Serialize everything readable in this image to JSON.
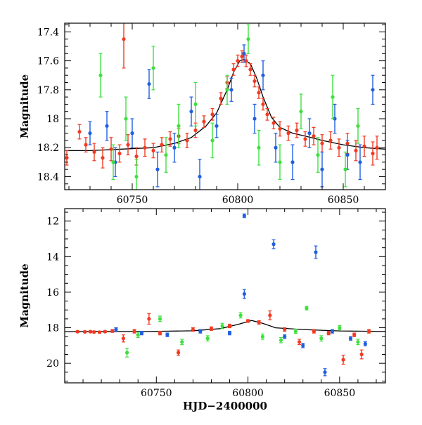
{
  "colors": {
    "blue": "#1f5fe0",
    "green": "#3ee03e",
    "red": "#f23a22",
    "model": "#000000"
  },
  "chart_data": [
    {
      "type": "scatter",
      "panel": "top",
      "xlabel": "",
      "ylabel": "Magnitude",
      "xlim": [
        60718,
        60870
      ],
      "ylim": [
        18.49,
        17.34
      ],
      "y_inverted": true,
      "x_ticks": [
        60750,
        60800,
        60850
      ],
      "y_ticks": [
        17.4,
        17.6,
        17.8,
        18,
        18.2,
        18.4
      ],
      "x_tick_labels": [
        "60750",
        "60800",
        "60850"
      ],
      "y_tick_labels": [
        "17.4",
        "17.6",
        "17.8",
        "18",
        "18.2",
        "18.4"
      ],
      "model_curve": {
        "x": [
          60718,
          60730,
          60745,
          60760,
          60770,
          60778,
          60785,
          60790,
          60795,
          60798,
          60801,
          60803,
          60806,
          60809,
          60812,
          60816,
          60820,
          60826,
          60832,
          60840,
          60850,
          60860,
          60870
        ],
        "y": [
          18.22,
          18.22,
          18.21,
          18.2,
          18.17,
          18.13,
          18.05,
          17.96,
          17.8,
          17.68,
          17.6,
          17.59,
          17.62,
          17.72,
          17.85,
          17.99,
          18.06,
          18.1,
          18.12,
          18.15,
          18.18,
          18.2,
          18.21
        ]
      },
      "series": [
        {
          "color_key": "red",
          "points": [
            {
              "x": 60719,
              "y": 18.27,
              "err": 0.05
            },
            {
              "x": 60725,
              "y": 18.09,
              "err": 0.05
            },
            {
              "x": 60728,
              "y": 18.18,
              "err": 0.05
            },
            {
              "x": 60732,
              "y": 18.23,
              "err": 0.06
            },
            {
              "x": 60736,
              "y": 18.27,
              "err": 0.07
            },
            {
              "x": 60740,
              "y": 18.21,
              "err": 0.08
            },
            {
              "x": 60744,
              "y": 18.24,
              "err": 0.06
            },
            {
              "x": 60746,
              "y": 17.45,
              "err": 0.2
            },
            {
              "x": 60748,
              "y": 18.18,
              "err": 0.07
            },
            {
              "x": 60752,
              "y": 18.26,
              "err": 0.06
            },
            {
              "x": 60756,
              "y": 18.2,
              "err": 0.06
            },
            {
              "x": 60760,
              "y": 18.22,
              "err": 0.05
            },
            {
              "x": 60764,
              "y": 18.18,
              "err": 0.05
            },
            {
              "x": 60768,
              "y": 18.14,
              "err": 0.05
            },
            {
              "x": 60772,
              "y": 18.12,
              "err": 0.05
            },
            {
              "x": 60776,
              "y": 18.15,
              "err": 0.05
            },
            {
              "x": 60780,
              "y": 18.08,
              "err": 0.05
            },
            {
              "x": 60784,
              "y": 18.02,
              "err": 0.04
            },
            {
              "x": 60788,
              "y": 17.97,
              "err": 0.04
            },
            {
              "x": 60792,
              "y": 17.86,
              "err": 0.04
            },
            {
              "x": 60795,
              "y": 17.75,
              "err": 0.04
            },
            {
              "x": 60798,
              "y": 17.66,
              "err": 0.04
            },
            {
              "x": 60800,
              "y": 17.6,
              "err": 0.04
            },
            {
              "x": 60802,
              "y": 17.57,
              "err": 0.04
            },
            {
              "x": 60804,
              "y": 17.6,
              "err": 0.04
            },
            {
              "x": 60806,
              "y": 17.66,
              "err": 0.04
            },
            {
              "x": 60808,
              "y": 17.74,
              "err": 0.04
            },
            {
              "x": 60810,
              "y": 17.82,
              "err": 0.04
            },
            {
              "x": 60812,
              "y": 17.9,
              "err": 0.04
            },
            {
              "x": 60814,
              "y": 17.97,
              "err": 0.04
            },
            {
              "x": 60817,
              "y": 18.03,
              "err": 0.04
            },
            {
              "x": 60820,
              "y": 18.07,
              "err": 0.05
            },
            {
              "x": 60824,
              "y": 18.1,
              "err": 0.05
            },
            {
              "x": 60828,
              "y": 18.08,
              "err": 0.05
            },
            {
              "x": 60832,
              "y": 18.14,
              "err": 0.05
            },
            {
              "x": 60836,
              "y": 18.12,
              "err": 0.06
            },
            {
              "x": 60840,
              "y": 18.17,
              "err": 0.06
            },
            {
              "x": 60844,
              "y": 18.15,
              "err": 0.06
            },
            {
              "x": 60848,
              "y": 18.2,
              "err": 0.06
            },
            {
              "x": 60852,
              "y": 18.17,
              "err": 0.07
            },
            {
              "x": 60856,
              "y": 18.22,
              "err": 0.07
            },
            {
              "x": 60860,
              "y": 18.19,
              "err": 0.07
            },
            {
              "x": 60864,
              "y": 18.24,
              "err": 0.08
            },
            {
              "x": 60866,
              "y": 18.2,
              "err": 0.08
            }
          ]
        },
        {
          "color_key": "blue",
          "points": [
            {
              "x": 60730,
              "y": 18.1,
              "err": 0.08
            },
            {
              "x": 60738,
              "y": 18.05,
              "err": 0.1
            },
            {
              "x": 60742,
              "y": 18.3,
              "err": 0.1
            },
            {
              "x": 60750,
              "y": 18.1,
              "err": 0.1
            },
            {
              "x": 60758,
              "y": 17.76,
              "err": 0.1
            },
            {
              "x": 60762,
              "y": 18.35,
              "err": 0.12
            },
            {
              "x": 60770,
              "y": 18.2,
              "err": 0.1
            },
            {
              "x": 60778,
              "y": 17.95,
              "err": 0.1
            },
            {
              "x": 60782,
              "y": 18.4,
              "err": 0.12
            },
            {
              "x": 60790,
              "y": 18.05,
              "err": 0.08
            },
            {
              "x": 60797,
              "y": 17.8,
              "err": 0.08
            },
            {
              "x": 60803,
              "y": 17.55,
              "err": 0.06
            },
            {
              "x": 60808,
              "y": 18.0,
              "err": 0.1
            },
            {
              "x": 60812,
              "y": 17.7,
              "err": 0.1
            },
            {
              "x": 60818,
              "y": 18.2,
              "err": 0.1
            },
            {
              "x": 60826,
              "y": 18.3,
              "err": 0.12
            },
            {
              "x": 60834,
              "y": 18.1,
              "err": 0.1
            },
            {
              "x": 60840,
              "y": 18.35,
              "err": 0.12
            },
            {
              "x": 60846,
              "y": 18.0,
              "err": 0.1
            },
            {
              "x": 60852,
              "y": 18.25,
              "err": 0.1
            },
            {
              "x": 60858,
              "y": 18.3,
              "err": 0.12
            },
            {
              "x": 60864,
              "y": 17.8,
              "err": 0.1
            }
          ]
        },
        {
          "color_key": "green",
          "points": [
            {
              "x": 60735,
              "y": 17.7,
              "err": 0.15
            },
            {
              "x": 60741,
              "y": 18.3,
              "err": 0.12
            },
            {
              "x": 60747,
              "y": 18.0,
              "err": 0.15
            },
            {
              "x": 60752,
              "y": 18.4,
              "err": 0.12
            },
            {
              "x": 60760,
              "y": 17.65,
              "err": 0.15
            },
            {
              "x": 60766,
              "y": 18.25,
              "err": 0.12
            },
            {
              "x": 60772,
              "y": 18.05,
              "err": 0.15
            },
            {
              "x": 60780,
              "y": 17.9,
              "err": 0.15
            },
            {
              "x": 60788,
              "y": 18.15,
              "err": 0.12
            },
            {
              "x": 60795,
              "y": 17.8,
              "err": 0.1
            },
            {
              "x": 60805,
              "y": 17.45,
              "err": 0.1
            },
            {
              "x": 60810,
              "y": 18.2,
              "err": 0.12
            },
            {
              "x": 60820,
              "y": 18.3,
              "err": 0.12
            },
            {
              "x": 60830,
              "y": 17.95,
              "err": 0.12
            },
            {
              "x": 60838,
              "y": 18.25,
              "err": 0.12
            },
            {
              "x": 60845,
              "y": 17.85,
              "err": 0.15
            },
            {
              "x": 60851,
              "y": 18.35,
              "err": 0.12
            },
            {
              "x": 60857,
              "y": 18.05,
              "err": 0.12
            }
          ]
        }
      ]
    },
    {
      "type": "scatter",
      "panel": "bottom",
      "xlabel": "HJD−2400000",
      "ylabel": "Magnitude",
      "xlim": [
        60700,
        60875
      ],
      "ylim": [
        21.1,
        11.3
      ],
      "y_inverted": true,
      "x_ticks": [
        60750,
        60800,
        60850
      ],
      "y_ticks": [
        12,
        14,
        16,
        18,
        20
      ],
      "x_tick_labels": [
        "60750",
        "60800",
        "60850"
      ],
      "y_tick_labels": [
        "12",
        "14",
        "16",
        "18",
        "20"
      ],
      "model_curve": {
        "x": [
          60700,
          60745,
          60770,
          60785,
          60795,
          60802,
          60808,
          60815,
          60830,
          60850,
          60875
        ],
        "y": [
          18.22,
          18.21,
          18.17,
          18.05,
          17.8,
          17.59,
          17.75,
          18.0,
          18.1,
          18.18,
          18.21
        ]
      },
      "series": [
        {
          "color_key": "red",
          "points": [
            {
              "x": 60707,
              "y": 18.22,
              "err": 0.05
            },
            {
              "x": 60711,
              "y": 18.23,
              "err": 0.05
            },
            {
              "x": 60714,
              "y": 18.22,
              "err": 0.05
            },
            {
              "x": 60716,
              "y": 18.24,
              "err": 0.05
            },
            {
              "x": 60719,
              "y": 18.25,
              "err": 0.05
            },
            {
              "x": 60722,
              "y": 18.22,
              "err": 0.05
            },
            {
              "x": 60726,
              "y": 18.18,
              "err": 0.08
            },
            {
              "x": 60732,
              "y": 18.6,
              "err": 0.2
            },
            {
              "x": 60738,
              "y": 18.2,
              "err": 0.1
            },
            {
              "x": 60746,
              "y": 17.5,
              "err": 0.3
            },
            {
              "x": 60752,
              "y": 18.3,
              "err": 0.1
            },
            {
              "x": 60762,
              "y": 19.4,
              "err": 0.15
            },
            {
              "x": 60770,
              "y": 18.1,
              "err": 0.1
            },
            {
              "x": 60780,
              "y": 18.05,
              "err": 0.1
            },
            {
              "x": 60790,
              "y": 17.9,
              "err": 0.1
            },
            {
              "x": 60800,
              "y": 17.62,
              "err": 0.08
            },
            {
              "x": 60806,
              "y": 17.7,
              "err": 0.1
            },
            {
              "x": 60812,
              "y": 17.3,
              "err": 0.25
            },
            {
              "x": 60820,
              "y": 18.1,
              "err": 0.1
            },
            {
              "x": 60828,
              "y": 18.8,
              "err": 0.15
            },
            {
              "x": 60836,
              "y": 18.2,
              "err": 0.1
            },
            {
              "x": 60844,
              "y": 18.3,
              "err": 0.1
            },
            {
              "x": 60852,
              "y": 19.8,
              "err": 0.25
            },
            {
              "x": 60858,
              "y": 18.4,
              "err": 0.1
            },
            {
              "x": 60862,
              "y": 19.5,
              "err": 0.25
            },
            {
              "x": 60866,
              "y": 18.2,
              "err": 0.1
            }
          ]
        },
        {
          "color_key": "blue",
          "points": [
            {
              "x": 60728,
              "y": 18.1,
              "err": 0.1
            },
            {
              "x": 60742,
              "y": 18.3,
              "err": 0.1
            },
            {
              "x": 60756,
              "y": 18.4,
              "err": 0.1
            },
            {
              "x": 60774,
              "y": 18.2,
              "err": 0.1
            },
            {
              "x": 60790,
              "y": 18.3,
              "err": 0.1
            },
            {
              "x": 60798,
              "y": 11.7,
              "err": 0.1
            },
            {
              "x": 60798,
              "y": 16.1,
              "err": 0.25
            },
            {
              "x": 60814,
              "y": 13.3,
              "err": 0.25
            },
            {
              "x": 60820,
              "y": 18.5,
              "err": 0.1
            },
            {
              "x": 60830,
              "y": 19.0,
              "err": 0.12
            },
            {
              "x": 60837,
              "y": 13.75,
              "err": 0.35
            },
            {
              "x": 60842,
              "y": 20.5,
              "err": 0.2
            },
            {
              "x": 60846,
              "y": 18.2,
              "err": 0.1
            },
            {
              "x": 60856,
              "y": 18.6,
              "err": 0.1
            },
            {
              "x": 60864,
              "y": 18.9,
              "err": 0.12
            }
          ]
        },
        {
          "color_key": "green",
          "points": [
            {
              "x": 60734,
              "y": 19.4,
              "err": 0.25
            },
            {
              "x": 60740,
              "y": 18.4,
              "err": 0.15
            },
            {
              "x": 60752,
              "y": 17.5,
              "err": 0.15
            },
            {
              "x": 60764,
              "y": 18.8,
              "err": 0.15
            },
            {
              "x": 60778,
              "y": 18.6,
              "err": 0.15
            },
            {
              "x": 60786,
              "y": 17.9,
              "err": 0.15
            },
            {
              "x": 60796,
              "y": 17.3,
              "err": 0.15
            },
            {
              "x": 60808,
              "y": 18.5,
              "err": 0.15
            },
            {
              "x": 60818,
              "y": 18.7,
              "err": 0.15
            },
            {
              "x": 60826,
              "y": 18.2,
              "err": 0.12
            },
            {
              "x": 60832,
              "y": 16.9,
              "err": 0.1
            },
            {
              "x": 60840,
              "y": 18.6,
              "err": 0.15
            },
            {
              "x": 60850,
              "y": 18.0,
              "err": 0.12
            },
            {
              "x": 60860,
              "y": 18.8,
              "err": 0.15
            }
          ]
        }
      ]
    }
  ]
}
